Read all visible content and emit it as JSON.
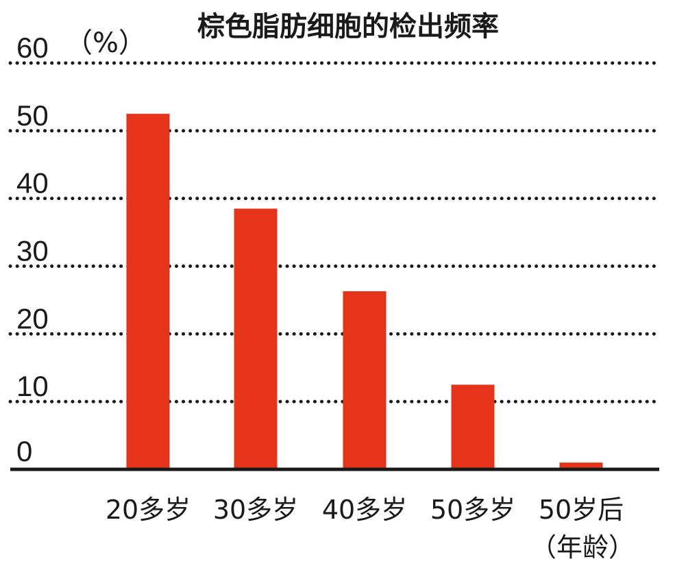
{
  "chart_data": {
    "type": "bar",
    "title": "棕色脂肪细胞的检出频率",
    "ylabel": "（%）",
    "xlabel": "（年龄）",
    "categories": [
      "20多岁",
      "30多岁",
      "40多岁",
      "50多岁",
      "50岁后"
    ],
    "values": [
      52.5,
      38.5,
      26.3,
      12.5,
      1.0
    ],
    "yticks": [
      "0",
      "10",
      "20",
      "30",
      "40",
      "50",
      "60"
    ],
    "ylim": [
      0,
      60
    ],
    "grid": true,
    "legend": "none",
    "colors": {
      "bar": "#e5341a",
      "grid": "#1a1a1a",
      "text": "#1a1a1a"
    }
  }
}
